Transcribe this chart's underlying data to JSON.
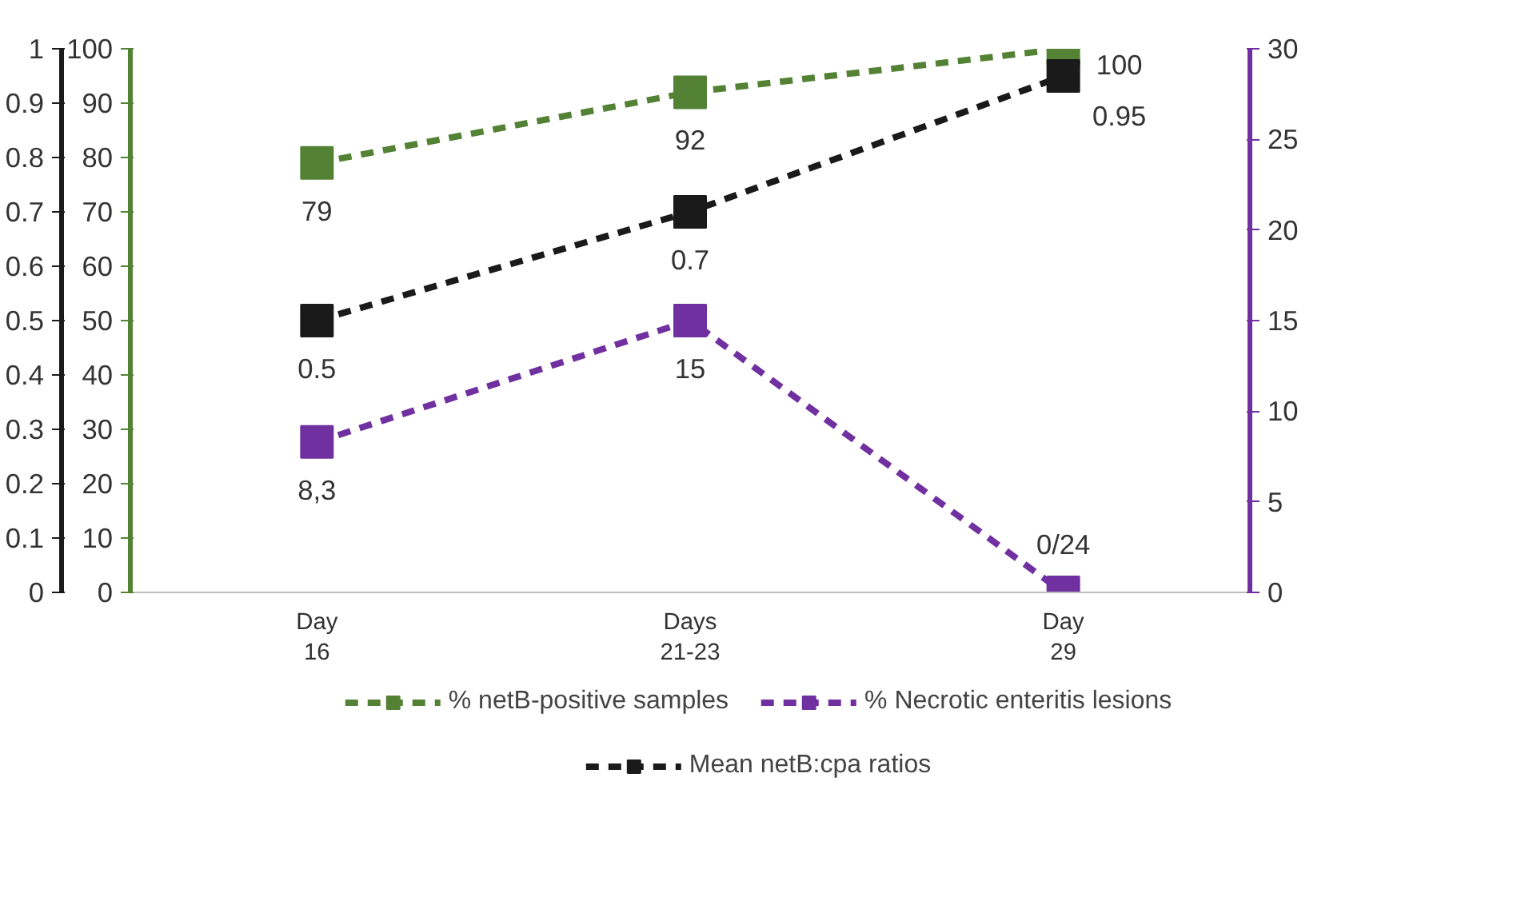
{
  "chart_data": {
    "type": "line",
    "categories": [
      "Day\n16",
      "Days\n21-23",
      "Day\n29"
    ],
    "ylim": [
      0,
      100
    ],
    "yticks": [
      0,
      10,
      20,
      30,
      40,
      50,
      60,
      70,
      80,
      90,
      100
    ],
    "y2lim": [
      0,
      30
    ],
    "y2ticks": [
      0,
      5,
      10,
      15,
      20,
      25,
      30
    ],
    "y3lim": [
      0,
      1
    ],
    "y3ticks": [
      0,
      {
        "value": 0.1,
        "label": "0.1"
      },
      {
        "value": 0.2,
        "label": "0.2"
      },
      {
        "value": 0.3,
        "label": "0.3"
      },
      {
        "value": 0.4,
        "label": "0.4"
      },
      {
        "value": 0.5,
        "label": "0.5"
      },
      {
        "value": 0.6,
        "label": "0.6"
      },
      {
        "value": 0.7,
        "label": "0.7"
      },
      {
        "value": 0.8,
        "label": "0.8"
      },
      {
        "value": 0.9,
        "label": "0.9"
      },
      1
    ],
    "series": [
      {
        "name": "% netB-positive samples",
        "color": "#548235",
        "values": [
          79,
          92,
          100
        ],
        "value_labels": [
          "79",
          "92",
          "100"
        ]
      },
      {
        "name": "% Necrotic enteritis lesions",
        "color": "#7030a0",
        "axis": "y2",
        "values": [
          8.3,
          15,
          0
        ],
        "value_labels": [
          "8,3",
          "15",
          "0/24"
        ]
      },
      {
        "name": "Mean netB:cpa ratios",
        "color": "#1a1a1a",
        "axis": "y3",
        "values": [
          0.5,
          0.7,
          0.95
        ],
        "value_labels": [
          "0.5",
          "0.7",
          "0.95"
        ]
      }
    ],
    "marker": "square",
    "line_style": "dashed",
    "grid": false,
    "legend": "bottom"
  }
}
